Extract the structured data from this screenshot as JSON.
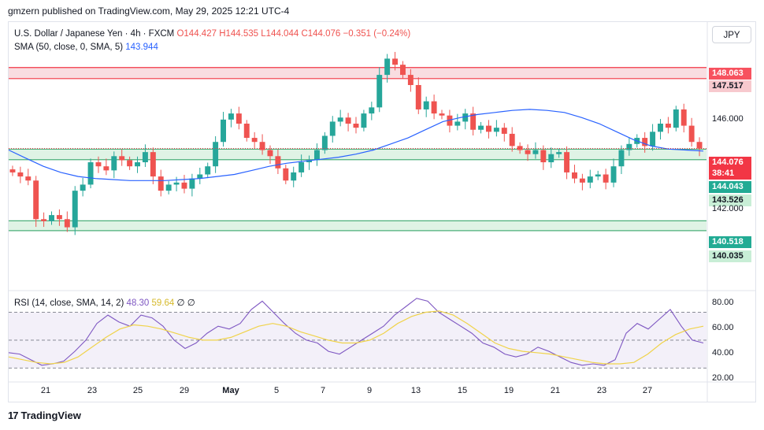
{
  "header": {
    "publisher": "gmzern published on TradingView.com, May 29, 2025 12:21 UTC-4"
  },
  "legend": {
    "symbol": "U.S. Dollar / Japanese Yen · 4h · FXCM",
    "open": "O144.427",
    "high": "H144.535",
    "low": "L144.044",
    "close": "C144.076",
    "change": "−0.351 (−0.24%)",
    "sma_label": "SMA (50, close, 0, SMA, 5)",
    "sma_value": "143.944"
  },
  "rsi_legend": {
    "label": "RSI (14, close, SMA, 14, 2)",
    "rsi": "48.30",
    "rsi_ma": "59.64",
    "extra1": "∅",
    "extra2": "∅"
  },
  "currency_button": "JPY",
  "price_tags": {
    "zone_high_top": "148.063",
    "zone_high_bottom": "147.517",
    "last_price": "144.076",
    "countdown": "38:41",
    "zone_mid_top": "144.043",
    "zone_mid_bottom": "143.526",
    "zone_low_top": "140.518",
    "zone_low_bottom": "140.035"
  },
  "price_axis": {
    "labels": [
      "146.000",
      "142.000"
    ]
  },
  "rsi_axis": {
    "labels": [
      "80.00",
      "60.00",
      "40.00",
      "20.00"
    ]
  },
  "time_axis": {
    "labels": [
      "21",
      "23",
      "25",
      "29",
      "May",
      "5",
      "7",
      "9",
      "13",
      "15",
      "19",
      "21",
      "23",
      "27"
    ]
  },
  "footer": {
    "brand": "TradingView",
    "logo_mark": "17"
  },
  "colors": {
    "up": "#26a69a",
    "down": "#ef5350",
    "sma": "#2962ff",
    "rsi": "#7e57c2",
    "rsi_ma": "#f0d34a",
    "zone_red_fill": "#f8d7dc",
    "zone_green_fill": "#d9f1e0"
  },
  "chart_data": {
    "type": "candlestick",
    "timeframe": "4h",
    "symbol": "USD/JPY",
    "price_range": [
      137.2,
      150.3
    ],
    "zones": [
      {
        "type": "resistance",
        "top": 148.063,
        "bottom": 147.517
      },
      {
        "type": "support",
        "top": 144.043,
        "bottom": 143.526
      },
      {
        "type": "support",
        "top": 140.518,
        "bottom": 140.035
      }
    ],
    "close": [
      142.9,
      142.7,
      142.5,
      140.6,
      140.5,
      140.8,
      140.6,
      140.2,
      142.0,
      142.3,
      143.4,
      143.2,
      143.0,
      143.7,
      143.5,
      143.2,
      143.4,
      143.9,
      142.7,
      142.0,
      142.3,
      142.4,
      142.1,
      142.6,
      142.8,
      143.2,
      144.4,
      145.5,
      145.8,
      145.3,
      144.6,
      144.4,
      144.0,
      143.7,
      143.1,
      142.5,
      142.9,
      143.4,
      143.5,
      144.0,
      144.7,
      145.4,
      145.6,
      145.3,
      145.1,
      145.8,
      146.1,
      147.7,
      148.5,
      148.2,
      147.7,
      147.2,
      146.0,
      146.4,
      145.8,
      145.7,
      145.2,
      145.4,
      145.8,
      145.0,
      145.2,
      144.9,
      145.1,
      144.8,
      144.2,
      144.0,
      143.8,
      144.0,
      143.4,
      143.8,
      143.9,
      142.9,
      142.6,
      142.4,
      142.7,
      142.8,
      142.4,
      143.2,
      144.0,
      144.3,
      144.6,
      144.2,
      144.9,
      145.3,
      145.1,
      146.0,
      145.2,
      144.4,
      144.08
    ],
    "sma_50": [
      144.0,
      143.6,
      143.2,
      142.9,
      142.7,
      142.6,
      142.55,
      142.5,
      142.5,
      142.5,
      142.55,
      142.6,
      142.7,
      142.8,
      143.0,
      143.2,
      143.35,
      143.45,
      143.55,
      143.65,
      143.8,
      144.0,
      144.3,
      144.6,
      145.0,
      145.4,
      145.6,
      145.75,
      145.85,
      145.95,
      146.0,
      145.95,
      145.85,
      145.6,
      145.3,
      144.9,
      144.5,
      144.2,
      144.05,
      144.0,
      143.95
    ],
    "rsi": [
      41,
      40,
      36,
      32,
      33,
      35,
      42,
      50,
      62,
      68,
      63,
      60,
      68,
      66,
      60,
      50,
      44,
      48,
      55,
      60,
      58,
      62,
      72,
      78,
      70,
      62,
      55,
      50,
      48,
      42,
      40,
      45,
      50,
      55,
      60,
      68,
      74,
      80,
      78,
      70,
      65,
      60,
      55,
      48,
      45,
      40,
      38,
      40,
      45,
      42,
      38,
      34,
      32,
      33,
      32,
      36,
      55,
      62,
      58,
      65,
      72,
      60,
      50,
      48
    ],
    "rsi_ma": [
      38,
      36,
      34,
      33,
      34,
      38,
      45,
      52,
      58,
      61,
      60,
      58,
      55,
      52,
      50,
      50,
      52,
      56,
      60,
      62,
      60,
      56,
      53,
      50,
      48,
      48,
      50,
      55,
      62,
      67,
      70,
      71,
      68,
      62,
      55,
      48,
      44,
      42,
      41,
      40,
      38,
      36,
      34,
      33,
      33,
      34,
      40,
      48,
      54,
      58,
      60
    ],
    "rsi_levels": [
      70,
      50,
      30
    ],
    "rsi_range": [
      20,
      85
    ]
  }
}
